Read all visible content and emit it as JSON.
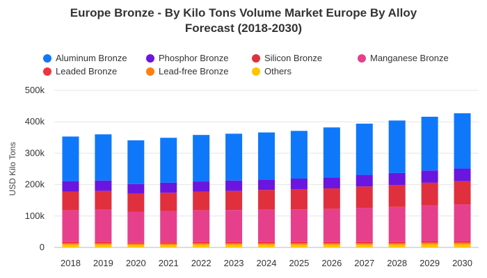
{
  "chart_data": {
    "type": "bar",
    "stacked": true,
    "title": "Europe Bronze - By Kilo Tons Volume Market Europe By Alloy Forecast (2018-2030)",
    "ylabel": "USD Kilo Tons",
    "xlabel": "",
    "ylim": [
      0,
      500000
    ],
    "yticks": [
      "0",
      "100k",
      "200k",
      "300k",
      "400k",
      "500k"
    ],
    "grid": true,
    "legend_position": "top",
    "categories": [
      "2018",
      "2019",
      "2020",
      "2021",
      "2022",
      "2023",
      "2024",
      "2025",
      "2026",
      "2027",
      "2028",
      "2029",
      "2030"
    ],
    "series": [
      {
        "name": "Others",
        "color": "#FFC400",
        "values": [
          9000,
          9000,
          8000,
          8000,
          9000,
          9000,
          9000,
          9000,
          9000,
          9000,
          9000,
          10000,
          10000
        ]
      },
      {
        "name": "Lead-free Bronze",
        "color": "#FF7F0E",
        "values": [
          4000,
          4000,
          4000,
          4000,
          4000,
          4000,
          4000,
          4000,
          4000,
          4000,
          4000,
          5000,
          5000
        ]
      },
      {
        "name": "Leaded Bronze",
        "color": "#F0343F",
        "values": [
          5000,
          5000,
          4000,
          5000,
          5000,
          5000,
          5000,
          5000,
          5000,
          5000,
          5000,
          5000,
          5000
        ]
      },
      {
        "name": "Manganese Bronze",
        "color": "#E6408C",
        "values": [
          100000,
          102000,
          97000,
          99000,
          100000,
          101000,
          102000,
          103000,
          105000,
          108000,
          111000,
          114000,
          117000
        ]
      },
      {
        "name": "Silicon Bronze",
        "color": "#E0303E",
        "values": [
          60000,
          60000,
          58000,
          58000,
          60000,
          61000,
          63000,
          64000,
          65000,
          68000,
          70000,
          72000,
          74000
        ]
      },
      {
        "name": "Phosphor Bronze",
        "color": "#6B15E0",
        "values": [
          33000,
          33000,
          31000,
          32000,
          32000,
          33000,
          33000,
          34000,
          35000,
          37000,
          38000,
          39000,
          40000
        ]
      },
      {
        "name": "Aluminum Bronze",
        "color": "#0F78FA",
        "values": [
          142000,
          147000,
          139000,
          143000,
          148000,
          149000,
          150000,
          152000,
          159000,
          163000,
          167000,
          171000,
          176000
        ]
      }
    ]
  },
  "legend": [
    {
      "label": "Aluminum Bronze",
      "color": "#0F78FA"
    },
    {
      "label": "Phosphor Bronze",
      "color": "#6B15E0"
    },
    {
      "label": "Silicon Bronze",
      "color": "#E0303E"
    },
    {
      "label": "Manganese Bronze",
      "color": "#E6408C"
    },
    {
      "label": "Leaded Bronze",
      "color": "#F0343F"
    },
    {
      "label": "Lead-free Bronze",
      "color": "#FF7F0E"
    },
    {
      "label": "Others",
      "color": "#FFC400"
    }
  ],
  "title_lines": [
    "Europe Bronze - By Kilo Tons Volume Market Europe By Alloy",
    "Forecast (2018-2030)"
  ]
}
